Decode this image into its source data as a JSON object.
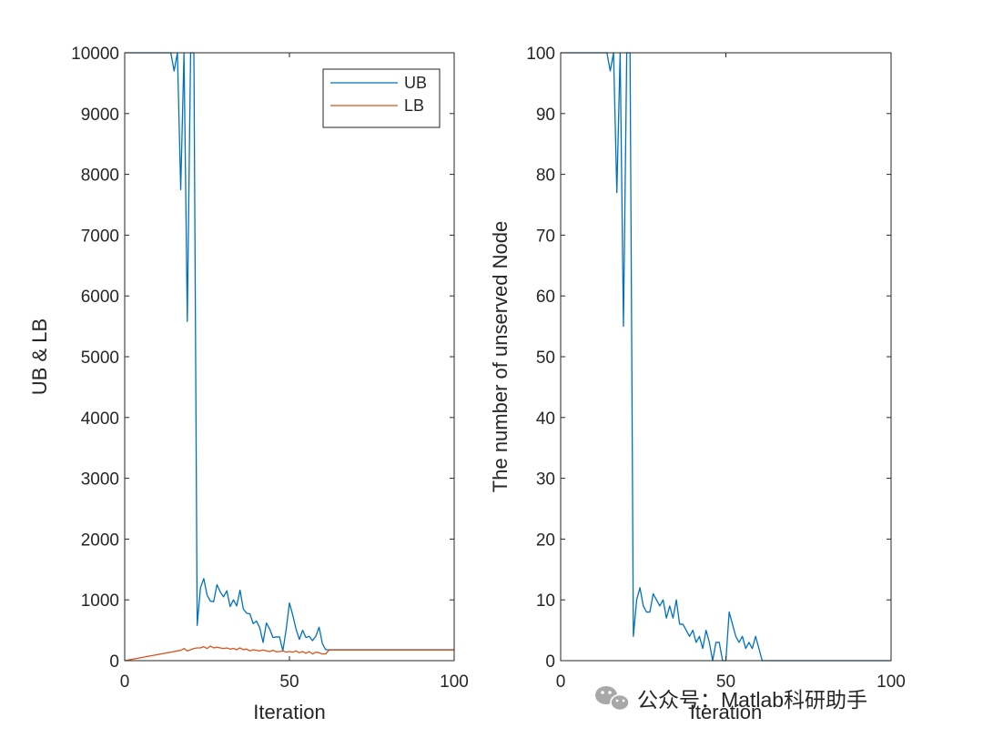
{
  "colors": {
    "ub": "#0072BD",
    "lb": "#D95319",
    "axis": "#262626",
    "watermark": "#9a9a9a"
  },
  "chart_data": [
    {
      "type": "line",
      "title": "",
      "xlabel": "Iteration",
      "ylabel": "UB & LB",
      "xlim": [
        0,
        100
      ],
      "ylim": [
        0,
        10000
      ],
      "xticks": [
        "0",
        "50",
        "100"
      ],
      "yticks": [
        "0",
        "1000",
        "2000",
        "3000",
        "4000",
        "5000",
        "6000",
        "7000",
        "8000",
        "9000",
        "10000"
      ],
      "grid": false,
      "legend_position": "top-right",
      "series": [
        {
          "name": "UB",
          "x": [
            0,
            1,
            2,
            3,
            4,
            5,
            6,
            7,
            8,
            9,
            10,
            11,
            12,
            13,
            14,
            15,
            16,
            17,
            18,
            19,
            20,
            21,
            22,
            23,
            24,
            25,
            26,
            27,
            28,
            29,
            30,
            31,
            32,
            33,
            34,
            35,
            36,
            37,
            38,
            39,
            40,
            41,
            42,
            43,
            44,
            45,
            46,
            47,
            48,
            49,
            50,
            51,
            52,
            53,
            54,
            55,
            56,
            57,
            58,
            59,
            60,
            61,
            62,
            63,
            64,
            65,
            66,
            67,
            68,
            69,
            70,
            71,
            72,
            73,
            74,
            75,
            76,
            77,
            78,
            79,
            80,
            81,
            82,
            83,
            84,
            85,
            86,
            87,
            88,
            89,
            90,
            91,
            92,
            93,
            94,
            95,
            96,
            97,
            98,
            99,
            100
          ],
          "y": [
            10000,
            10000,
            10000,
            10000,
            10000,
            10000,
            10000,
            10000,
            10000,
            10000,
            10000,
            10000,
            10000,
            10000,
            10000,
            9700,
            10000,
            7750,
            10000,
            5580,
            10000,
            10000,
            580,
            1200,
            1350,
            1080,
            980,
            970,
            1250,
            1130,
            1050,
            1150,
            890,
            1000,
            900,
            1160,
            850,
            780,
            770,
            610,
            650,
            540,
            300,
            620,
            520,
            380,
            390,
            390,
            160,
            510,
            950,
            750,
            520,
            350,
            500,
            380,
            400,
            330,
            400,
            550,
            280,
            180,
            180,
            180,
            180,
            180,
            180,
            180,
            180,
            180,
            180,
            180,
            180,
            180,
            180,
            180,
            180,
            180,
            180,
            180,
            180,
            180,
            180,
            180,
            180,
            180,
            180,
            180,
            180,
            180,
            180,
            180,
            180,
            180,
            180,
            180,
            180,
            180,
            180,
            180,
            180
          ]
        },
        {
          "name": "LB",
          "x": [
            0,
            1,
            2,
            3,
            4,
            5,
            6,
            7,
            8,
            9,
            10,
            11,
            12,
            13,
            14,
            15,
            16,
            17,
            18,
            19,
            20,
            21,
            22,
            23,
            24,
            25,
            26,
            27,
            28,
            29,
            30,
            31,
            32,
            33,
            34,
            35,
            36,
            37,
            38,
            39,
            40,
            41,
            42,
            43,
            44,
            45,
            46,
            47,
            48,
            49,
            50,
            51,
            52,
            53,
            54,
            55,
            56,
            57,
            58,
            59,
            60,
            61,
            62,
            63,
            64,
            65,
            66,
            67,
            68,
            69,
            70,
            71,
            72,
            73,
            74,
            75,
            76,
            77,
            78,
            79,
            80,
            81,
            82,
            83,
            84,
            85,
            86,
            87,
            88,
            89,
            90,
            91,
            92,
            93,
            94,
            95,
            96,
            97,
            98,
            99,
            100
          ],
          "y": [
            0,
            10,
            20,
            30,
            40,
            50,
            60,
            70,
            80,
            90,
            100,
            110,
            120,
            130,
            140,
            150,
            160,
            170,
            200,
            160,
            180,
            200,
            210,
            210,
            230,
            200,
            240,
            210,
            220,
            210,
            200,
            210,
            190,
            200,
            180,
            210,
            180,
            190,
            160,
            180,
            170,
            160,
            175,
            160,
            150,
            170,
            145,
            150,
            160,
            140,
            150,
            140,
            160,
            130,
            150,
            120,
            150,
            110,
            140,
            130,
            110,
            110,
            175,
            175,
            175,
            175,
            175,
            175,
            175,
            175,
            175,
            175,
            175,
            175,
            175,
            175,
            175,
            175,
            175,
            175,
            175,
            175,
            175,
            175,
            175,
            175,
            175,
            175,
            175,
            175,
            175,
            175,
            175,
            175,
            175,
            175,
            175,
            175,
            175,
            175,
            175
          ]
        }
      ]
    },
    {
      "type": "line",
      "title": "",
      "xlabel": "Iteration",
      "ylabel": "The number of unserved Node",
      "xlim": [
        0,
        100
      ],
      "ylim": [
        0,
        100
      ],
      "xticks": [
        "0",
        "50",
        "100"
      ],
      "yticks": [
        "0",
        "10",
        "20",
        "30",
        "40",
        "50",
        "60",
        "70",
        "80",
        "90",
        "100"
      ],
      "grid": false,
      "series": [
        {
          "name": "",
          "x": [
            0,
            1,
            2,
            3,
            4,
            5,
            6,
            7,
            8,
            9,
            10,
            11,
            12,
            13,
            14,
            15,
            16,
            17,
            18,
            19,
            20,
            21,
            22,
            23,
            24,
            25,
            26,
            27,
            28,
            29,
            30,
            31,
            32,
            33,
            34,
            35,
            36,
            37,
            38,
            39,
            40,
            41,
            42,
            43,
            44,
            45,
            46,
            47,
            48,
            49,
            50,
            51,
            52,
            53,
            54,
            55,
            56,
            57,
            58,
            59,
            60,
            61,
            62,
            63,
            64,
            65,
            66,
            67,
            68,
            69,
            70,
            71,
            72,
            73,
            74,
            75,
            76,
            77,
            78,
            79,
            80,
            81,
            82,
            83,
            84,
            85,
            86,
            87,
            88,
            89,
            90,
            91,
            92,
            93,
            94,
            95,
            96,
            97,
            98,
            99,
            100
          ],
          "y": [
            100,
            100,
            100,
            100,
            100,
            100,
            100,
            100,
            100,
            100,
            100,
            100,
            100,
            100,
            100,
            97,
            100,
            77,
            100,
            55,
            100,
            100,
            4,
            10,
            12,
            9,
            8,
            8,
            11,
            10,
            9,
            10,
            7,
            9,
            7,
            10,
            6,
            6,
            5,
            4,
            5,
            3,
            4,
            2,
            5,
            3,
            0,
            3,
            3,
            0,
            0,
            8,
            6,
            4,
            3,
            4,
            2,
            3,
            2,
            4,
            2,
            0,
            0,
            0,
            0,
            0,
            0,
            0,
            0,
            0,
            0,
            0,
            0,
            0,
            0,
            0,
            0,
            0,
            0,
            0,
            0,
            0,
            0,
            0,
            0,
            0,
            0,
            0,
            0,
            0,
            0,
            0,
            0,
            0,
            0,
            0,
            0,
            0,
            0,
            0,
            0
          ]
        }
      ]
    }
  ],
  "watermark": {
    "text": "公众号：Matlab科研助手",
    "icon": "wechat-icon"
  }
}
